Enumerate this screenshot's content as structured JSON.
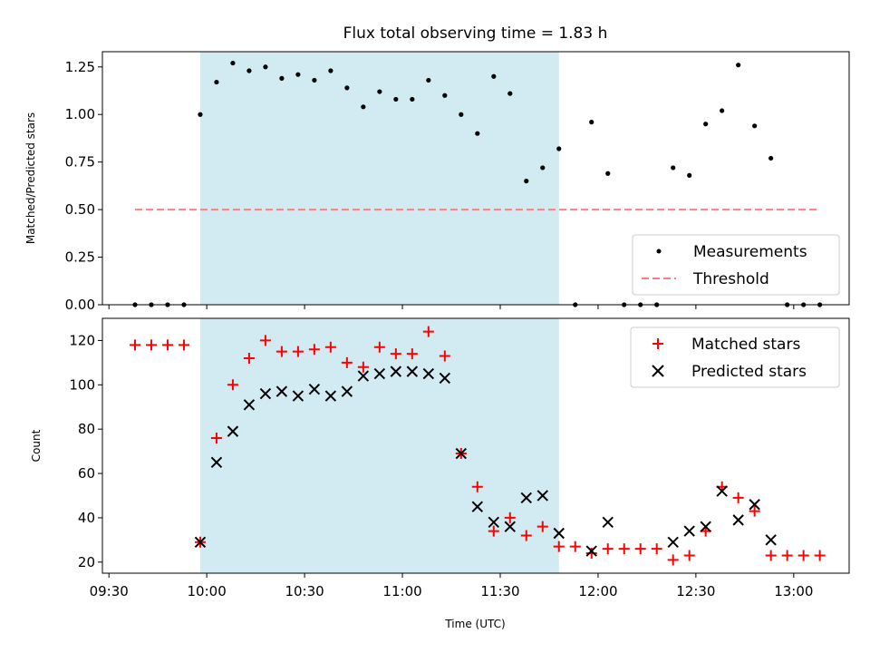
{
  "chart_data": [
    {
      "type": "scatter",
      "title": "Flux total observing time = 1.83 h",
      "xlabel": "",
      "ylabel": "Matched/Predicted stars",
      "xlim": [
        "09:28",
        "13:17"
      ],
      "ylim": [
        0,
        1.33
      ],
      "yticks": [
        "0.00",
        "0.25",
        "0.50",
        "0.75",
        "1.00",
        "1.25"
      ],
      "shaded_interval": [
        "09:58",
        "11:48"
      ],
      "shade_color": "#add8e6",
      "legend_position": "lower right",
      "series": [
        {
          "name": "Measurements",
          "marker": "dot",
          "color": "#000000",
          "points": [
            [
              "09:38",
              0.0
            ],
            [
              "09:43",
              0.0
            ],
            [
              "09:48",
              0.0
            ],
            [
              "09:53",
              0.0
            ],
            [
              "09:58",
              1.0
            ],
            [
              "10:03",
              1.17
            ],
            [
              "10:08",
              1.27
            ],
            [
              "10:13",
              1.23
            ],
            [
              "10:18",
              1.25
            ],
            [
              "10:23",
              1.19
            ],
            [
              "10:28",
              1.21
            ],
            [
              "10:33",
              1.18
            ],
            [
              "10:38",
              1.23
            ],
            [
              "10:43",
              1.14
            ],
            [
              "10:48",
              1.04
            ],
            [
              "10:53",
              1.12
            ],
            [
              "10:58",
              1.08
            ],
            [
              "11:03",
              1.08
            ],
            [
              "11:08",
              1.18
            ],
            [
              "11:13",
              1.1
            ],
            [
              "11:18",
              1.0
            ],
            [
              "11:23",
              0.9
            ],
            [
              "11:28",
              1.2
            ],
            [
              "11:33",
              1.11
            ],
            [
              "11:38",
              0.65
            ],
            [
              "11:43",
              0.72
            ],
            [
              "11:48",
              0.82
            ],
            [
              "11:53",
              0.0
            ],
            [
              "11:58",
              0.96
            ],
            [
              "12:03",
              0.69
            ],
            [
              "12:08",
              0.0
            ],
            [
              "12:13",
              0.0
            ],
            [
              "12:18",
              0.0
            ],
            [
              "12:23",
              0.72
            ],
            [
              "12:28",
              0.68
            ],
            [
              "12:33",
              0.95
            ],
            [
              "12:38",
              1.02
            ],
            [
              "12:43",
              1.26
            ],
            [
              "12:48",
              0.94
            ],
            [
              "12:53",
              0.77
            ],
            [
              "12:58",
              0.0
            ],
            [
              "13:03",
              0.0
            ],
            [
              "13:08",
              0.0
            ]
          ]
        },
        {
          "name": "Threshold",
          "marker": "dashed-line",
          "color": "#ff7f7f",
          "points": [
            [
              "09:38",
              0.5
            ],
            [
              "13:08",
              0.5
            ]
          ]
        }
      ]
    },
    {
      "type": "scatter",
      "title": "",
      "xlabel": "Time (UTC)",
      "ylabel": "Count",
      "xlim": [
        "09:28",
        "13:17"
      ],
      "ylim": [
        15,
        130
      ],
      "yticks": [
        "20",
        "40",
        "60",
        "80",
        "100",
        "120"
      ],
      "xticks": [
        "09:30",
        "10:00",
        "10:30",
        "11:00",
        "11:30",
        "12:00",
        "12:30",
        "13:00"
      ],
      "shaded_interval": [
        "09:58",
        "11:48"
      ],
      "shade_color": "#add8e6",
      "legend_position": "upper right",
      "series": [
        {
          "name": "Matched stars",
          "marker": "plus",
          "color": "#ff0000",
          "points": [
            [
              "09:38",
              118
            ],
            [
              "09:43",
              118
            ],
            [
              "09:48",
              118
            ],
            [
              "09:53",
              118
            ],
            [
              "09:58",
              29
            ],
            [
              "10:03",
              76
            ],
            [
              "10:08",
              100
            ],
            [
              "10:13",
              112
            ],
            [
              "10:18",
              120
            ],
            [
              "10:23",
              115
            ],
            [
              "10:28",
              115
            ],
            [
              "10:33",
              116
            ],
            [
              "10:38",
              117
            ],
            [
              "10:43",
              110
            ],
            [
              "10:48",
              108
            ],
            [
              "10:53",
              117
            ],
            [
              "10:58",
              114
            ],
            [
              "11:03",
              114
            ],
            [
              "11:08",
              124
            ],
            [
              "11:13",
              113
            ],
            [
              "11:18",
              69
            ],
            [
              "11:23",
              54
            ],
            [
              "11:28",
              34
            ],
            [
              "11:33",
              40
            ],
            [
              "11:38",
              32
            ],
            [
              "11:43",
              36
            ],
            [
              "11:48",
              27
            ],
            [
              "11:53",
              27
            ],
            [
              "11:58",
              24
            ],
            [
              "12:03",
              26
            ],
            [
              "12:08",
              26
            ],
            [
              "12:13",
              26
            ],
            [
              "12:18",
              26
            ],
            [
              "12:23",
              21
            ],
            [
              "12:28",
              23
            ],
            [
              "12:33",
              34
            ],
            [
              "12:38",
              54
            ],
            [
              "12:43",
              49
            ],
            [
              "12:48",
              43
            ],
            [
              "12:53",
              23
            ],
            [
              "12:58",
              23
            ],
            [
              "13:03",
              23
            ],
            [
              "13:08",
              23
            ]
          ]
        },
        {
          "name": "Predicted stars",
          "marker": "x",
          "color": "#000000",
          "points": [
            [
              "09:58",
              29
            ],
            [
              "10:03",
              65
            ],
            [
              "10:08",
              79
            ],
            [
              "10:13",
              91
            ],
            [
              "10:18",
              96
            ],
            [
              "10:23",
              97
            ],
            [
              "10:28",
              95
            ],
            [
              "10:33",
              98
            ],
            [
              "10:38",
              95
            ],
            [
              "10:43",
              97
            ],
            [
              "10:48",
              104
            ],
            [
              "10:53",
              105
            ],
            [
              "10:58",
              106
            ],
            [
              "11:03",
              106
            ],
            [
              "11:08",
              105
            ],
            [
              "11:13",
              103
            ],
            [
              "11:18",
              69
            ],
            [
              "11:23",
              45
            ],
            [
              "11:28",
              38
            ],
            [
              "11:33",
              36
            ],
            [
              "11:38",
              49
            ],
            [
              "11:43",
              50
            ],
            [
              "11:48",
              33
            ],
            [
              "11:58",
              25
            ],
            [
              "12:03",
              38
            ],
            [
              "12:23",
              29
            ],
            [
              "12:28",
              34
            ],
            [
              "12:33",
              36
            ],
            [
              "12:38",
              52
            ],
            [
              "12:43",
              39
            ],
            [
              "12:48",
              46
            ],
            [
              "12:53",
              30
            ]
          ]
        }
      ]
    }
  ]
}
